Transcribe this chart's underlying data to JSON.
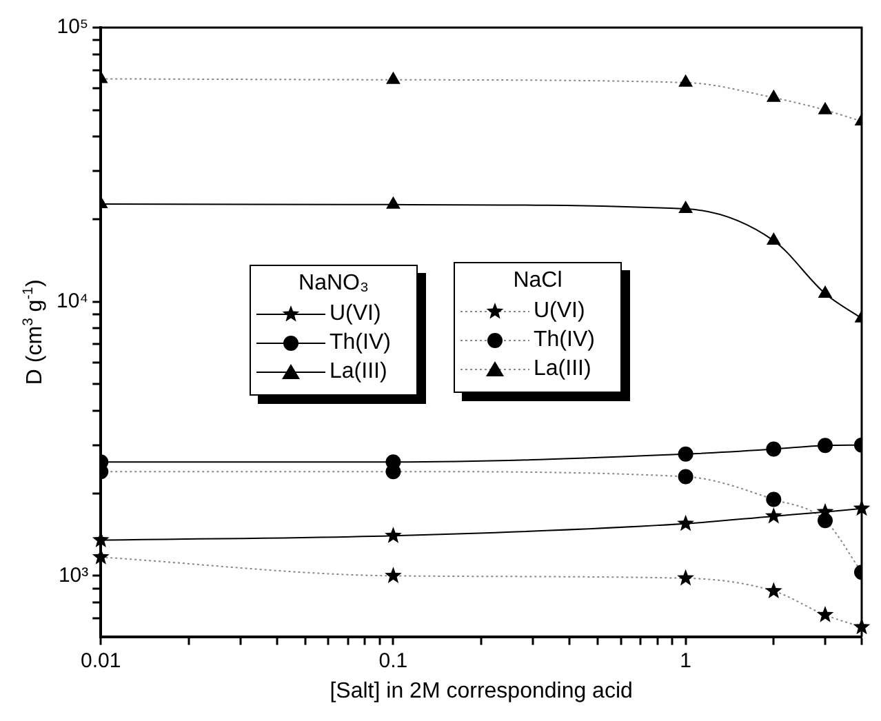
{
  "chart_data": {
    "type": "line",
    "xlabel": "[Salt] in 2M corresponding acid",
    "ylabel": "D (cm$^{3}$ g$^{-1}$)",
    "annotations": [
      "NaNO₃",
      "NaCl"
    ],
    "x": [
      0.01,
      0.1,
      1,
      2,
      3,
      4
    ],
    "log": "xy",
    "xlim": [
      0.01,
      4
    ],
    "xticks": [
      0.01,
      {
        "value": 0.02,
        "label": null
      },
      {
        "value": 0.03,
        "label": null
      },
      {
        "value": 0.04,
        "label": null
      },
      {
        "value": 0.05,
        "label": null
      },
      {
        "value": 0.06,
        "label": null
      },
      {
        "value": 0.07,
        "label": null
      },
      {
        "value": 0.08,
        "label": null
      },
      {
        "value": 0.09,
        "label": null
      },
      0.1,
      {
        "value": 0.2,
        "label": null
      },
      {
        "value": 0.3,
        "label": null
      },
      {
        "value": 0.4,
        "label": null
      },
      {
        "value": 0.5,
        "label": null
      },
      {
        "value": 0.6,
        "label": null
      },
      {
        "value": 0.7,
        "label": null
      },
      {
        "value": 0.8,
        "label": null
      },
      {
        "value": 0.9,
        "label": null
      },
      1,
      {
        "value": 2,
        "label": null
      },
      {
        "value": 3,
        "label": null
      },
      {
        "value": 4,
        "label": null
      }
    ],
    "ylim": [
      600,
      100000
    ],
    "yticks": [
      {
        "value": 700,
        "label": null
      },
      {
        "value": 800,
        "label": null
      },
      {
        "value": 900,
        "label": null
      },
      {
        "value": 1000,
        "label": "10³"
      },
      {
        "value": 2000,
        "label": null
      },
      {
        "value": 3000,
        "label": null
      },
      {
        "value": 4000,
        "label": null
      },
      {
        "value": 5000,
        "label": null
      },
      {
        "value": 6000,
        "label": null
      },
      {
        "value": 7000,
        "label": null
      },
      {
        "value": 8000,
        "label": null
      },
      {
        "value": 9000,
        "label": null
      },
      {
        "value": 10000,
        "label": "10⁴"
      },
      {
        "value": 20000,
        "label": null
      },
      {
        "value": 30000,
        "label": null
      },
      {
        "value": 40000,
        "label": null
      },
      {
        "value": 50000,
        "label": null
      },
      {
        "value": 60000,
        "label": null
      },
      {
        "value": 70000,
        "label": null
      },
      {
        "value": 80000,
        "label": null
      },
      {
        "value": 90000,
        "label": null
      },
      {
        "value": 100000,
        "label": "10⁵"
      }
    ],
    "grid": false,
    "legend": "left",
    "series": [
      {
        "name": "U(VI)",
        "color": "#000000",
        "marker": "star",
        "line_style": "solid",
        "values": [
          1350,
          1400,
          1550,
          1650,
          1710,
          1760
        ]
      },
      {
        "name": "Th(IV)",
        "color": "#000000",
        "marker": "circle",
        "line_style": "solid",
        "values": [
          2600,
          2600,
          2780,
          2900,
          2990,
          3000
        ]
      },
      {
        "name": "La(III)",
        "color": "#000000",
        "marker": "triangle",
        "line_style": "solid",
        "values": [
          22700,
          22600,
          21800,
          16700,
          10700,
          8700
        ]
      },
      {
        "name": "U(VI)",
        "color": "#000000",
        "marker": "star",
        "line_style": "dotted",
        "values": [
          1170,
          1000,
          980,
          880,
          720,
          650
        ]
      },
      {
        "name": "Th(IV)",
        "color": "#000000",
        "marker": "circle",
        "line_style": "dotted",
        "values": [
          2400,
          2400,
          2300,
          1900,
          1590,
          1030
        ]
      },
      {
        "name": "La(III)",
        "color": "#000000",
        "marker": "triangle",
        "line_style": "dotted",
        "values": [
          65000,
          64500,
          63000,
          55500,
          50000,
          45500
        ]
      }
    ]
  }
}
